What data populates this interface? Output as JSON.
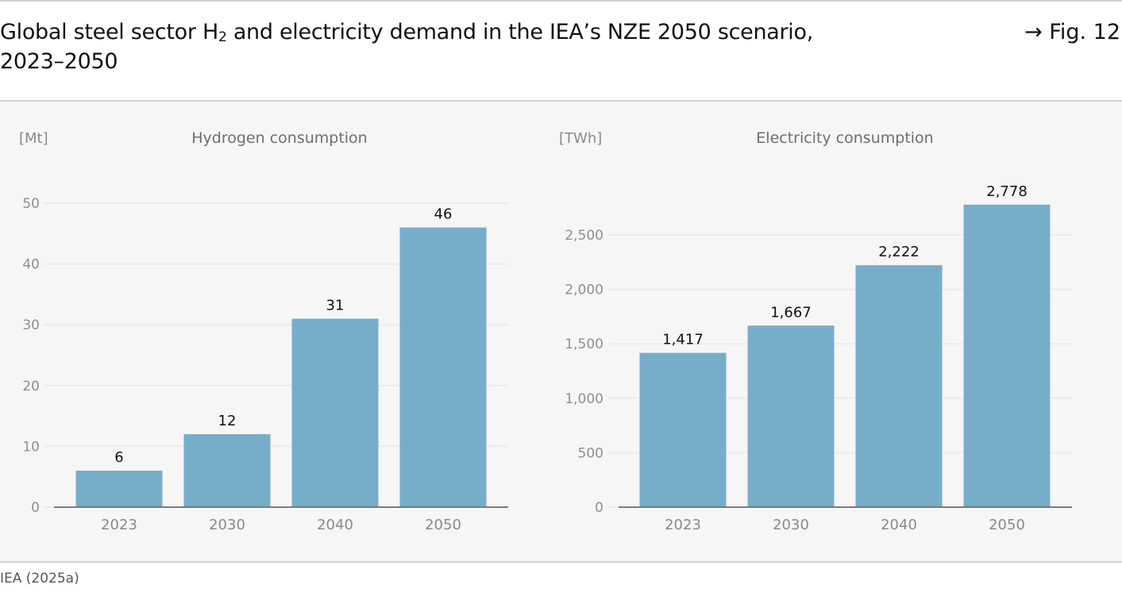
{
  "header": {
    "title_part1": "Global steel sector H",
    "title_sub": "2",
    "title_part2": " and electricity demand in the IEA’s NZE 2050 scenario,",
    "title_line2": "2023–2050",
    "figure_ref": "→ Fig. 12"
  },
  "footer": {
    "source": "IEA (2025a)"
  },
  "colors": {
    "bar": "#76aec9",
    "grid": "#ebebeb",
    "axis": "#7a7a7a",
    "panel": "#f6f6f6"
  },
  "chart_data": [
    {
      "type": "bar",
      "title": "Hydrogen consumption",
      "ylabel": "[Mt]",
      "xlabel": "",
      "categories": [
        "2023",
        "2030",
        "2040",
        "2050"
      ],
      "values": [
        6,
        12,
        31,
        46
      ],
      "value_labels": [
        "6",
        "12",
        "31",
        "46"
      ],
      "ylim": [
        0,
        50
      ],
      "yticks": [
        0,
        10,
        20,
        30,
        40,
        50
      ],
      "ytick_labels": [
        "0",
        "10",
        "20",
        "30",
        "40",
        "50"
      ],
      "grid": true,
      "legend": "none"
    },
    {
      "type": "bar",
      "title": "Electricity consumption",
      "ylabel": "[TWh]",
      "xlabel": "",
      "categories": [
        "2023",
        "2030",
        "2040",
        "2050"
      ],
      "values": [
        1417,
        1667,
        2222,
        2778
      ],
      "value_labels": [
        "1,417",
        "1,667",
        "2,222",
        "2,778"
      ],
      "ylim": [
        0,
        2500
      ],
      "yticks": [
        0,
        500,
        1000,
        1500,
        2000,
        2500
      ],
      "ytick_labels": [
        "0",
        "500",
        "1,000",
        "1,500",
        "2,000",
        "2,500"
      ],
      "grid": true,
      "legend": "none"
    }
  ]
}
